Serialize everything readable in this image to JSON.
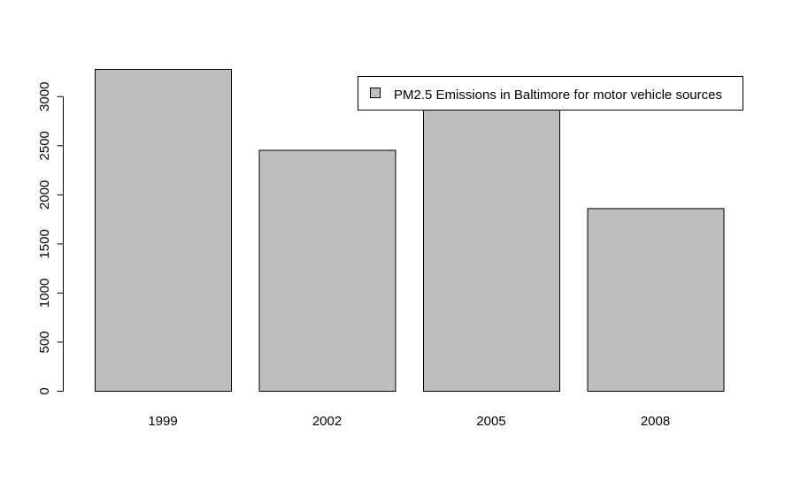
{
  "chart_data": {
    "type": "bar",
    "categories": [
      "1999",
      "2002",
      "2005",
      "2008"
    ],
    "values": [
      3277,
      2453,
      2970,
      1860
    ],
    "ylim": [
      0,
      3277
    ],
    "yticks": [
      0,
      500,
      1000,
      1500,
      2000,
      2500,
      3000
    ],
    "ytick_labels": [
      "0",
      "500",
      "1000",
      "1500",
      "2000",
      "2500",
      "3000"
    ],
    "bar_color": "#bebebe",
    "border_color": "#000000",
    "grid": false,
    "legend": {
      "placement": "top-right",
      "entries": [
        "PM2.5 Emissions in Baltimore for motor vehicle sources"
      ]
    }
  }
}
